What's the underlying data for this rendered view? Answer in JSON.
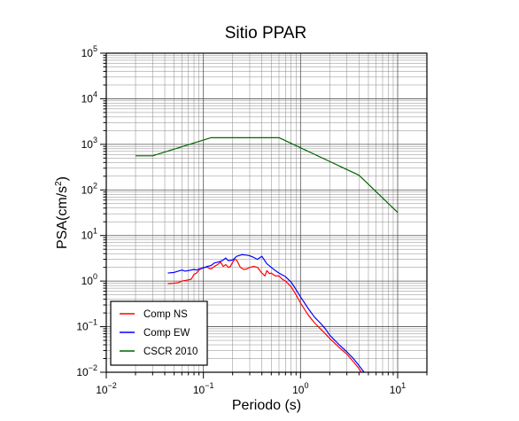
{
  "chart_data": {
    "type": "line",
    "title": "Sitio PPAR",
    "xlabel": "Periodo (s)",
    "ylabel": {
      "base": "PSA(cm/s",
      "sup": "2",
      "close": ")"
    },
    "xscale": "log",
    "yscale": "log",
    "xlim": [
      0.01,
      20
    ],
    "ylim": [
      0.01,
      100000
    ],
    "grid": true,
    "legend_position": "bottom-left",
    "x_ticks": [
      {
        "value": 0.01,
        "base": "10",
        "exp": "−2"
      },
      {
        "value": 0.1,
        "base": "10",
        "exp": "−1"
      },
      {
        "value": 1,
        "base": "10",
        "exp": "0"
      },
      {
        "value": 10,
        "base": "10",
        "exp": "1"
      }
    ],
    "y_ticks": [
      {
        "value": 0.01,
        "base": "10",
        "exp": "−2"
      },
      {
        "value": 0.1,
        "base": "10",
        "exp": "−1"
      },
      {
        "value": 1,
        "base": "10",
        "exp": "0"
      },
      {
        "value": 10,
        "base": "10",
        "exp": "1"
      },
      {
        "value": 100,
        "base": "10",
        "exp": "2"
      },
      {
        "value": 1000,
        "base": "10",
        "exp": "3"
      },
      {
        "value": 10000,
        "base": "10",
        "exp": "4"
      },
      {
        "value": 100000,
        "base": "10",
        "exp": "5"
      }
    ],
    "series": [
      {
        "name": "Comp NS",
        "color": "#ff0000",
        "x": [
          0.043,
          0.05,
          0.055,
          0.06,
          0.068,
          0.075,
          0.08,
          0.085,
          0.09,
          0.1,
          0.11,
          0.12,
          0.13,
          0.14,
          0.15,
          0.16,
          0.17,
          0.18,
          0.19,
          0.2,
          0.21,
          0.22,
          0.24,
          0.26,
          0.28,
          0.3,
          0.33,
          0.36,
          0.4,
          0.43,
          0.45,
          0.48,
          0.5,
          0.55,
          0.6,
          0.65,
          0.7,
          0.8,
          0.9,
          1.0,
          1.2,
          1.4,
          1.6,
          1.8,
          2.0,
          2.5,
          3.0,
          3.5,
          4.0,
          4.5
        ],
        "y": [
          0.88,
          0.9,
          0.92,
          1.0,
          1.05,
          1.1,
          1.4,
          1.5,
          1.75,
          2.0,
          2.0,
          1.85,
          2.1,
          2.3,
          2.6,
          2.1,
          2.3,
          2.0,
          2.1,
          2.6,
          3.0,
          2.9,
          2.0,
          1.8,
          1.85,
          2.0,
          2.1,
          2.0,
          1.5,
          1.3,
          1.7,
          1.45,
          1.5,
          1.3,
          1.3,
          1.1,
          1.0,
          0.75,
          0.5,
          0.33,
          0.18,
          0.12,
          0.09,
          0.07,
          0.055,
          0.035,
          0.025,
          0.017,
          0.012,
          0.0085
        ]
      },
      {
        "name": "Comp EW",
        "color": "#0000ff",
        "x": [
          0.043,
          0.05,
          0.055,
          0.06,
          0.065,
          0.07,
          0.08,
          0.085,
          0.09,
          0.1,
          0.11,
          0.12,
          0.13,
          0.14,
          0.15,
          0.16,
          0.17,
          0.18,
          0.2,
          0.22,
          0.25,
          0.28,
          0.3,
          0.33,
          0.36,
          0.4,
          0.45,
          0.5,
          0.55,
          0.6,
          0.7,
          0.8,
          0.9,
          1.0,
          1.2,
          1.4,
          1.6,
          1.8,
          2.0,
          2.5,
          3.0,
          3.5,
          4.0,
          4.7
        ],
        "y": [
          1.5,
          1.55,
          1.65,
          1.75,
          1.65,
          1.7,
          1.8,
          1.75,
          1.85,
          1.95,
          2.1,
          2.2,
          2.5,
          2.6,
          2.7,
          2.9,
          3.2,
          2.8,
          2.9,
          3.5,
          3.8,
          3.7,
          3.6,
          3.3,
          3.0,
          3.5,
          2.4,
          2.0,
          1.7,
          1.5,
          1.25,
          0.95,
          0.65,
          0.45,
          0.25,
          0.16,
          0.12,
          0.09,
          0.065,
          0.04,
          0.028,
          0.02,
          0.014,
          0.009
        ]
      },
      {
        "name": "CSCR 2010",
        "color": "#006400",
        "x": [
          0.02,
          0.03,
          0.12,
          0.6,
          4.0,
          10.0
        ],
        "y": [
          560,
          560,
          1400,
          1400,
          210,
          32
        ]
      }
    ]
  }
}
